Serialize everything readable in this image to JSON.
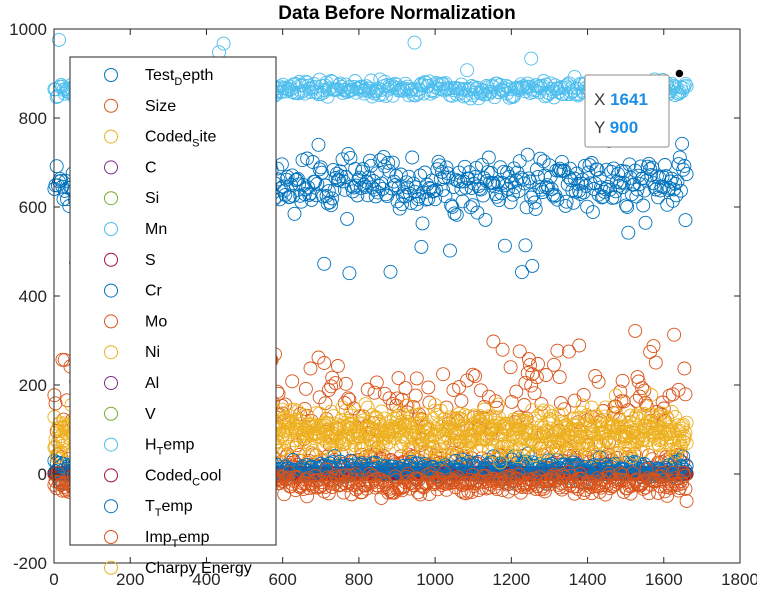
{
  "chart_data": {
    "type": "scatter",
    "title": "Data Before Normalization",
    "xlabel": "",
    "ylabel": "",
    "xlim": [
      0,
      1800
    ],
    "ylim": [
      -200,
      1000
    ],
    "xticks": [
      "0",
      "200",
      "400",
      "600",
      "800",
      "1000",
      "1200",
      "1400",
      "1600",
      "1800"
    ],
    "yticks": [
      "-200",
      "0",
      "200",
      "400",
      "600",
      "800",
      "1000"
    ],
    "n_points": 1662,
    "legend_position": "top-left",
    "series": [
      {
        "name": "Test_Depth",
        "base": "Test",
        "sub": "D",
        "rest": "epth",
        "color": "#0072bd",
        "center": 650,
        "spread": 50
      },
      {
        "name": "Size",
        "base": "Size",
        "sub": "",
        "rest": "",
        "color": "#d95319",
        "center": 150,
        "spread": 120
      },
      {
        "name": "Coded_Site",
        "base": "Coded",
        "sub": "S",
        "rest": "ite",
        "color": "#edb120",
        "center": 80,
        "spread": 50
      },
      {
        "name": "C",
        "base": "C",
        "sub": "",
        "rest": "",
        "color": "#7e2f8e",
        "center": 0.3,
        "spread": 0.1
      },
      {
        "name": "Si",
        "base": "Si",
        "sub": "",
        "rest": "",
        "color": "#77ac30",
        "center": 0.4,
        "spread": 0.1
      },
      {
        "name": "Mn",
        "base": "Mn",
        "sub": "",
        "rest": "",
        "color": "#4dbeee",
        "center": 1.2,
        "spread": 0.3
      },
      {
        "name": "S",
        "base": "S",
        "sub": "",
        "rest": "",
        "color": "#a2142f",
        "center": 0.01,
        "spread": 0.005
      },
      {
        "name": "Cr",
        "base": "Cr",
        "sub": "",
        "rest": "",
        "color": "#0072bd",
        "center": 1.0,
        "spread": 0.5
      },
      {
        "name": "Mo",
        "base": "Mo",
        "sub": "",
        "rest": "",
        "color": "#d95319",
        "center": 0.3,
        "spread": 0.1
      },
      {
        "name": "Ni",
        "base": "Ni",
        "sub": "",
        "rest": "",
        "color": "#edb120",
        "center": 0.5,
        "spread": 0.2
      },
      {
        "name": "Al",
        "base": "Al",
        "sub": "",
        "rest": "",
        "color": "#7e2f8e",
        "center": 0.03,
        "spread": 0.01
      },
      {
        "name": "V",
        "base": "V",
        "sub": "",
        "rest": "",
        "color": "#77ac30",
        "center": 0.05,
        "spread": 0.02
      },
      {
        "name": "H_Temp",
        "base": "H",
        "sub": "T",
        "rest": "emp",
        "color": "#4dbeee",
        "center": 865,
        "spread": 15
      },
      {
        "name": "Coded_Cool",
        "base": "Coded",
        "sub": "C",
        "rest": "ool",
        "color": "#a2142f",
        "center": 1.5,
        "spread": 1
      },
      {
        "name": "T_Temp",
        "base": "T",
        "sub": "T",
        "rest": "emp",
        "color": "#0072bd",
        "center": 10,
        "spread": 20
      },
      {
        "name": "Imp_Temp",
        "base": "Imp",
        "sub": "T",
        "rest": "emp",
        "color": "#d95319",
        "center": -20,
        "spread": 20
      },
      {
        "name": "Charpy Energy",
        "base": "Charpy Energy",
        "sub": "",
        "rest": "",
        "color": "#edb120",
        "center": 100,
        "spread": 40
      }
    ]
  },
  "datatip": {
    "x_label": "X",
    "x_value": "1641",
    "y_label": "Y",
    "y_value": "900",
    "x": 1641,
    "y": 900
  }
}
